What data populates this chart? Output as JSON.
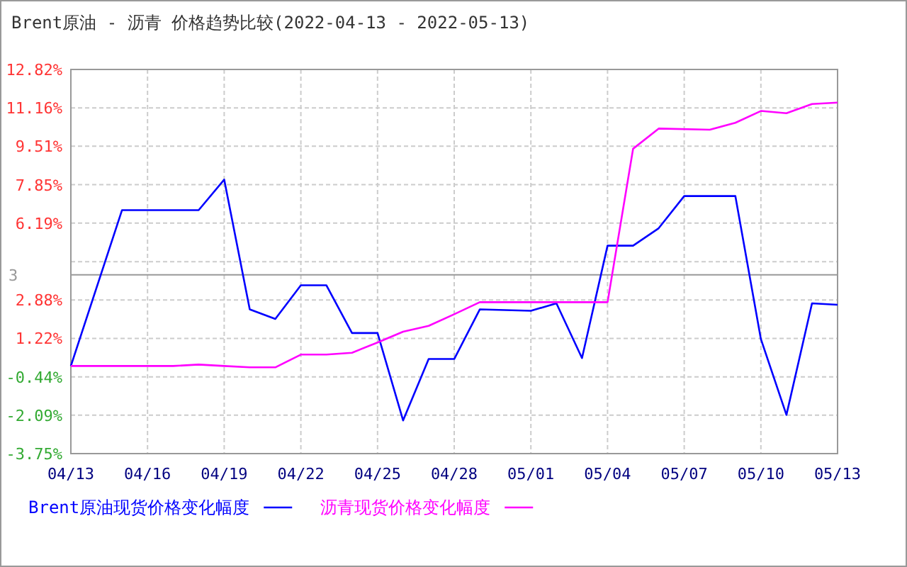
{
  "chart_data": {
    "type": "line",
    "title": "Brent原油 - 沥青 价格趋势比较(2022-04-13 - 2022-05-13)",
    "series": [
      {
        "name": "Brent原油现货价格变化幅度",
        "color": "#0000ff",
        "x": [
          "2022-04-13",
          "2022-04-15",
          "2022-04-18",
          "2022-04-19",
          "2022-04-20",
          "2022-04-21",
          "2022-04-22",
          "2022-04-23",
          "2022-04-24",
          "2022-04-25",
          "2022-04-26",
          "2022-04-27",
          "2022-04-28",
          "2022-04-29",
          "2022-05-01",
          "2022-05-02",
          "2022-05-03",
          "2022-05-04",
          "2022-05-05",
          "2022-05-06",
          "2022-05-07",
          "2022-05-09",
          "2022-05-10",
          "2022-05-11",
          "2022-05-12",
          "2022-05-13"
        ],
        "values": [
          0.03,
          6.75,
          6.75,
          8.07,
          2.47,
          2.06,
          3.51,
          3.51,
          1.45,
          1.45,
          -2.32,
          0.33,
          0.33,
          2.47,
          2.41,
          2.73,
          0.37,
          5.22,
          5.22,
          5.97,
          7.36,
          7.36,
          1.19,
          -2.08,
          2.73,
          2.67
        ]
      },
      {
        "name": "沥青现货价格变化幅度",
        "color": "#ff00ff",
        "x": [
          "2022-04-13",
          "2022-04-17",
          "2022-04-18",
          "2022-04-19",
          "2022-04-20",
          "2022-04-21",
          "2022-04-22",
          "2022-04-23",
          "2022-04-24",
          "2022-04-25",
          "2022-04-26",
          "2022-04-27",
          "2022-04-28",
          "2022-04-29",
          "2022-05-04",
          "2022-05-05",
          "2022-05-06",
          "2022-05-08",
          "2022-05-09",
          "2022-05-10",
          "2022-05-11",
          "2022-05-12",
          "2022-05-13"
        ],
        "values": [
          0.03,
          0.03,
          0.09,
          0.03,
          -0.03,
          -0.03,
          0.52,
          0.52,
          0.6,
          1.04,
          1.51,
          1.76,
          2.26,
          2.78,
          2.78,
          9.4,
          10.27,
          10.22,
          10.52,
          11.03,
          10.93,
          11.33,
          11.39
        ]
      }
    ],
    "xlim": [
      "2022-04-13",
      "2022-05-13"
    ],
    "xticks": [
      {
        "value": "2022-04-13",
        "label": "04/13"
      },
      {
        "value": "2022-04-16",
        "label": "04/16"
      },
      {
        "value": "2022-04-19",
        "label": "04/19"
      },
      {
        "value": "2022-04-22",
        "label": "04/22"
      },
      {
        "value": "2022-04-25",
        "label": "04/25"
      },
      {
        "value": "2022-04-28",
        "label": "04/28"
      },
      {
        "value": "2022-05-01",
        "label": "05/01"
      },
      {
        "value": "2022-05-04",
        "label": "05/04"
      },
      {
        "value": "2022-05-07",
        "label": "05/07"
      },
      {
        "value": "2022-05-10",
        "label": "05/10"
      },
      {
        "value": "2022-05-13",
        "label": "05/13"
      }
    ],
    "ylim": [
      -3.75,
      12.82
    ],
    "yticks": [
      {
        "value": -3.75,
        "label": "-3.75%"
      },
      {
        "value": -2.09,
        "label": "-2.09%"
      },
      {
        "value": -0.44,
        "label": "-0.44%"
      },
      {
        "value": 1.22,
        "label": "1.22%"
      },
      {
        "value": 2.88,
        "label": "2.88%"
      },
      {
        "value": 4.53,
        "label": null
      },
      {
        "value": 6.19,
        "label": "6.19%"
      },
      {
        "value": 7.85,
        "label": "7.85%"
      },
      {
        "value": 9.51,
        "label": "9.51%"
      },
      {
        "value": 11.16,
        "label": "11.16%"
      },
      {
        "value": 12.82,
        "label": "12.82%"
      }
    ],
    "ref_lines": [
      {
        "axis": "y",
        "value": 3.96,
        "color": "#999999"
      }
    ],
    "annotations": [
      "3"
    ],
    "grid": true,
    "legend": "bottom"
  }
}
